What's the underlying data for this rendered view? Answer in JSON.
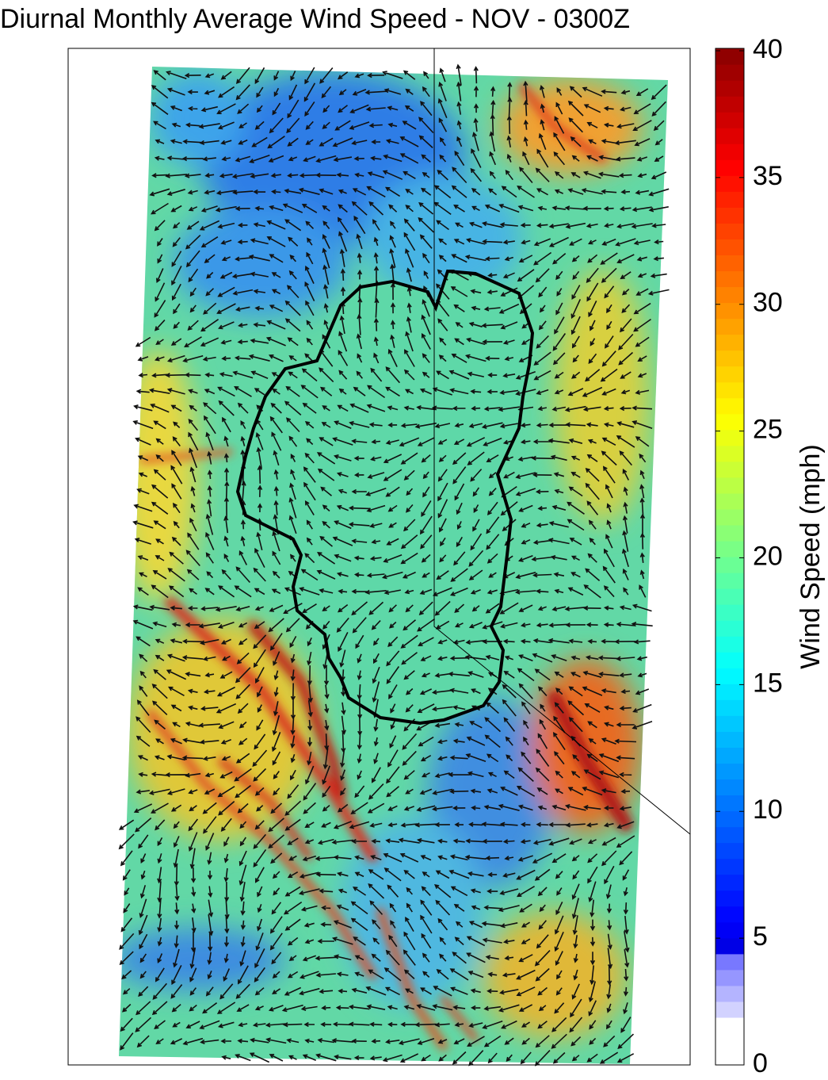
{
  "title": "Diurnal Monthly Average Wind Speed - NOV - 0300Z",
  "colorbar": {
    "label": "Wind Speed (mph)",
    "clim": [
      0,
      40
    ],
    "ticks": [
      0,
      5,
      10,
      15,
      20,
      25,
      30,
      35,
      40
    ]
  }
}
